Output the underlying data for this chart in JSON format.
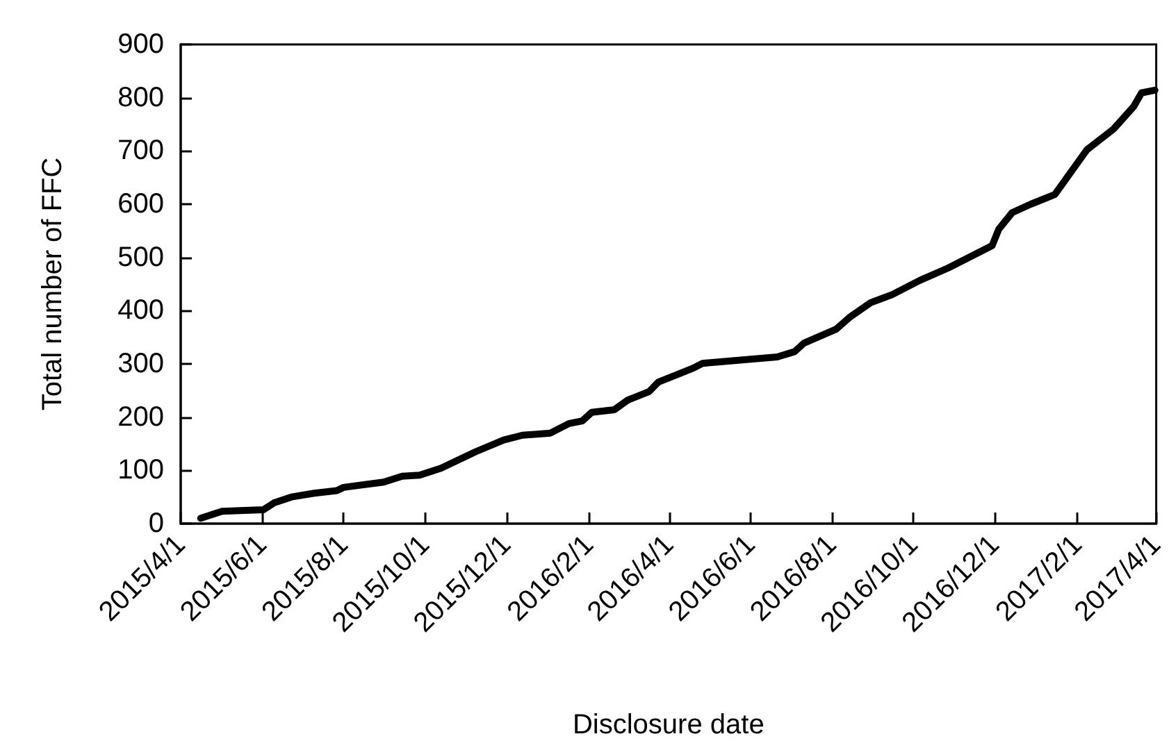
{
  "chart_data": {
    "type": "line",
    "xlabel": "Disclosure date",
    "ylabel": "Total number of FFC",
    "x": [
      "2015-04-16",
      "2015-05-02",
      "2015-06-02",
      "2015-06-10",
      "2015-06-23",
      "2015-07-10",
      "2015-07-27",
      "2015-08-01",
      "2015-08-31",
      "2015-09-14",
      "2015-09-27",
      "2015-10-13",
      "2015-11-08",
      "2015-11-29",
      "2015-12-13",
      "2016-01-03",
      "2016-01-17",
      "2016-01-27",
      "2016-02-03",
      "2016-02-20",
      "2016-03-01",
      "2016-03-17",
      "2016-03-24",
      "2016-04-09",
      "2016-04-19",
      "2016-04-26",
      "2016-06-21",
      "2016-07-04",
      "2016-07-11",
      "2016-08-04",
      "2016-08-15",
      "2016-08-30",
      "2016-09-15",
      "2016-10-06",
      "2016-10-27",
      "2016-11-29",
      "2016-12-04",
      "2016-12-14",
      "2016-12-28",
      "2017-01-15",
      "2017-02-08",
      "2017-02-28",
      "2017-03-15",
      "2017-03-21",
      "2017-03-31"
    ],
    "series": [
      {
        "color": "#000000",
        "values": [
          10,
          23,
          26,
          39,
          50,
          57,
          62,
          68,
          78,
          89,
          91,
          104,
          135,
          157,
          166,
          170,
          188,
          193,
          209,
          214,
          232,
          248,
          266,
          282,
          292,
          301,
          313,
          323,
          339,
          365,
          389,
          415,
          430,
          457,
          480,
          522,
          553,
          584,
          600,
          618,
          702,
          741,
          783,
          809,
          814
        ]
      }
    ],
    "xlim": [
      "2015-04-01",
      "2017-04-01"
    ],
    "xticks": [
      {
        "value": "2015-04-01",
        "label": "2015/4/1"
      },
      {
        "value": "2015-06-01",
        "label": "2015/6/1"
      },
      {
        "value": "2015-08-01",
        "label": "2015/8/1"
      },
      {
        "value": "2015-10-01",
        "label": "2015/10/1"
      },
      {
        "value": "2015-12-01",
        "label": "2015/12/1"
      },
      {
        "value": "2016-02-01",
        "label": "2016/2/1"
      },
      {
        "value": "2016-04-01",
        "label": "2016/4/1"
      },
      {
        "value": "2016-06-01",
        "label": "2016/6/1"
      },
      {
        "value": "2016-08-01",
        "label": "2016/8/1"
      },
      {
        "value": "2016-10-01",
        "label": "2016/10/1"
      },
      {
        "value": "2016-12-01",
        "label": "2016/12/1"
      },
      {
        "value": "2017-02-01",
        "label": "2017/2/1"
      },
      {
        "value": "2017-04-01",
        "label": "2017/4/1"
      }
    ],
    "ylim": [
      0,
      900
    ],
    "yticks": [
      0,
      100,
      200,
      300,
      400,
      500,
      600,
      700,
      800,
      900
    ],
    "marker": "none",
    "line_style": "solid"
  }
}
